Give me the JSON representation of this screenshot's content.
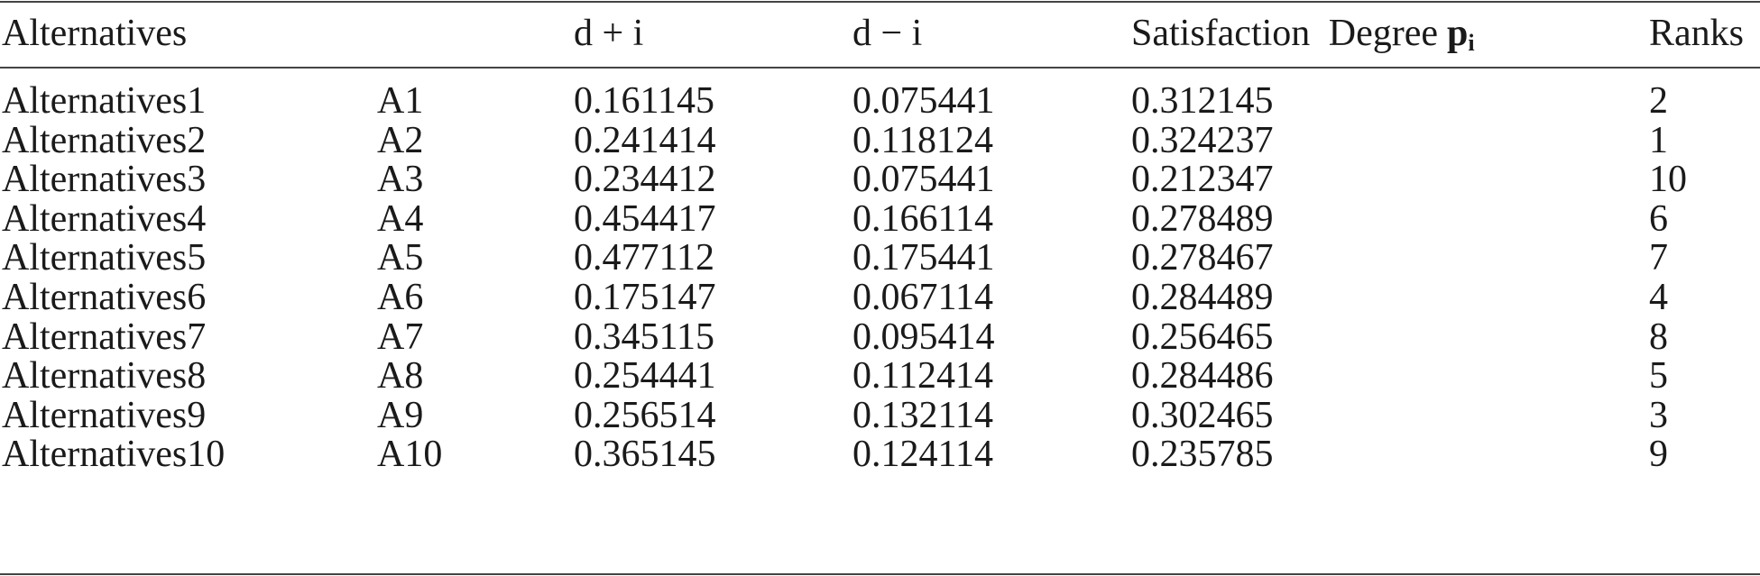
{
  "table": {
    "headers": {
      "alternatives": "Alternatives",
      "code": "",
      "d_plus": "d + i",
      "d_minus": "d − i",
      "satisfaction": "Satisfaction Degree",
      "satisfaction_symbol": "p",
      "satisfaction_subscript": "i",
      "ranks": "Ranks"
    },
    "rows": [
      {
        "name": "Alternatives1",
        "code": "A1",
        "d_plus": "0.161145",
        "d_minus": "0.075441",
        "satisfaction": "0.312145",
        "rank": "2"
      },
      {
        "name": "Alternatives2",
        "code": "A2",
        "d_plus": "0.241414",
        "d_minus": "0.118124",
        "satisfaction": "0.324237",
        "rank": "1"
      },
      {
        "name": "Alternatives3",
        "code": "A3",
        "d_plus": "0.234412",
        "d_minus": "0.075441",
        "satisfaction": "0.212347",
        "rank": "10"
      },
      {
        "name": "Alternatives4",
        "code": "A4",
        "d_plus": "0.454417",
        "d_minus": "0.166114",
        "satisfaction": "0.278489",
        "rank": "6"
      },
      {
        "name": "Alternatives5",
        "code": "A5",
        "d_plus": "0.477112",
        "d_minus": "0.175441",
        "satisfaction": "0.278467",
        "rank": "7"
      },
      {
        "name": "Alternatives6",
        "code": "A6",
        "d_plus": "0.175147",
        "d_minus": "0.067114",
        "satisfaction": "0.284489",
        "rank": "4"
      },
      {
        "name": "Alternatives7",
        "code": "A7",
        "d_plus": "0.345115",
        "d_minus": "0.095414",
        "satisfaction": "0.256465",
        "rank": "8"
      },
      {
        "name": "Alternatives8",
        "code": "A8",
        "d_plus": "0.254441",
        "d_minus": "0.112414",
        "satisfaction": "0.284486",
        "rank": "5"
      },
      {
        "name": "Alternatives9",
        "code": "A9",
        "d_plus": "0.256514",
        "d_minus": "0.132114",
        "satisfaction": "0.302465",
        "rank": "3"
      },
      {
        "name": "Alternatives10",
        "code": "A10",
        "d_plus": "0.365145",
        "d_minus": "0.124114",
        "satisfaction": "0.235785",
        "rank": "9"
      }
    ]
  }
}
